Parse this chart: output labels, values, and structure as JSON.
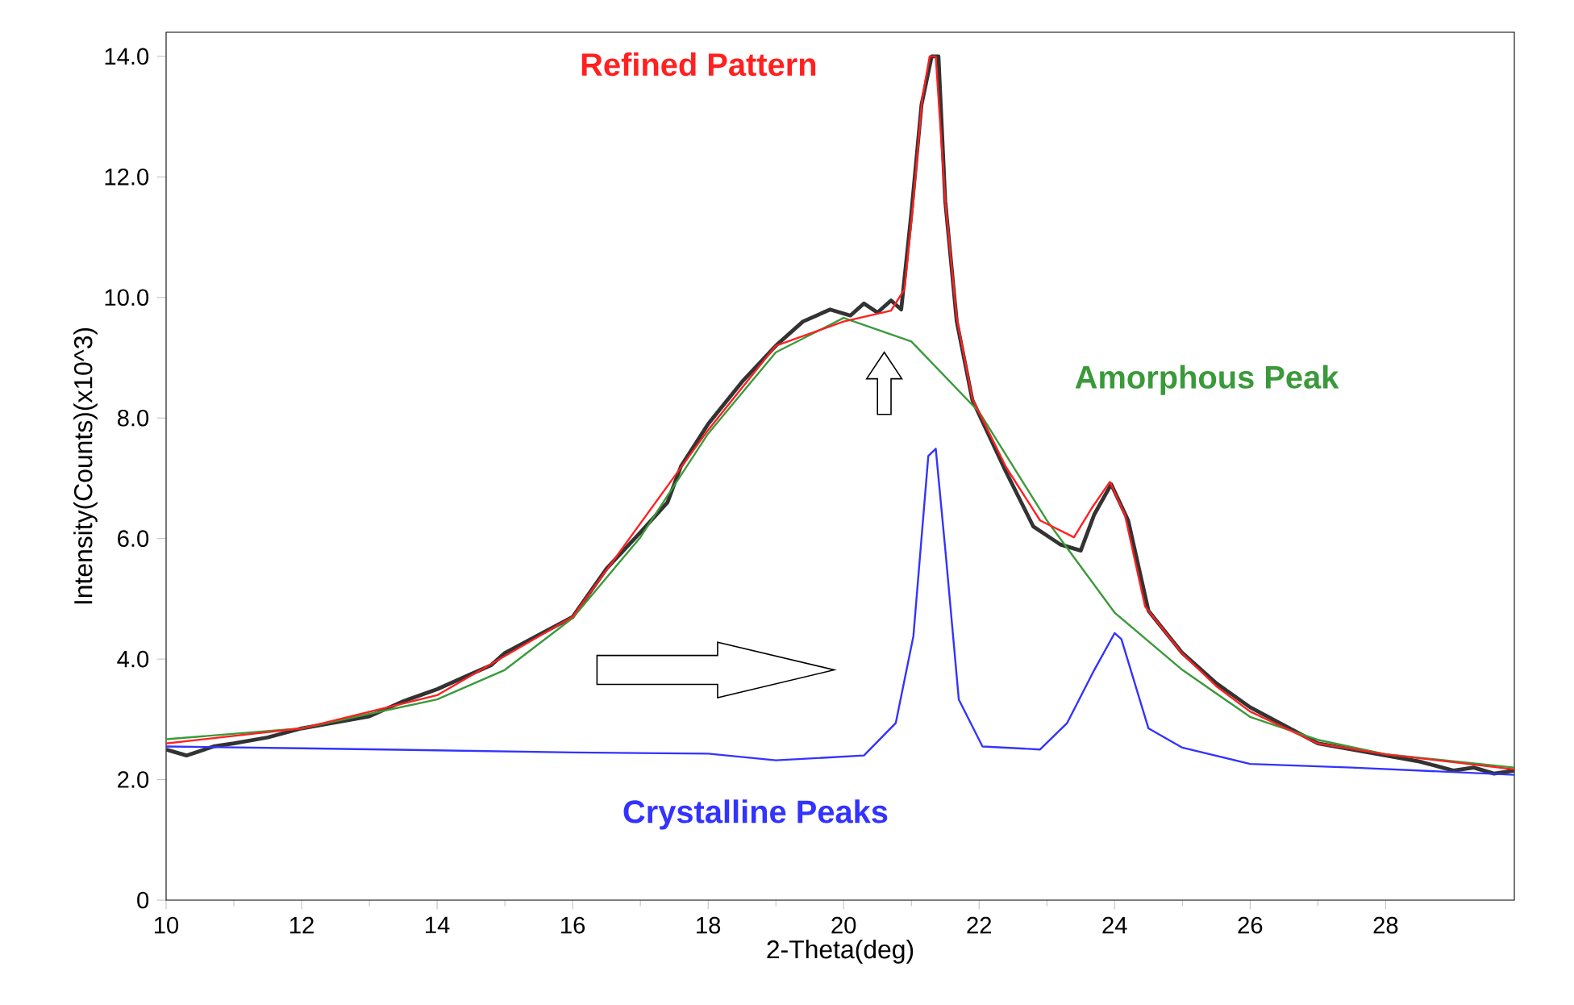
{
  "chart_data": {
    "type": "line",
    "xlabel": "2-Theta(deg)",
    "ylabel": "Intensity(Counts)(x10^3)",
    "xlim": [
      10,
      29.9
    ],
    "ylim": [
      0,
      14.4
    ],
    "xticks": [
      10,
      12,
      14,
      16,
      18,
      20,
      22,
      24,
      26,
      28
    ],
    "yticks": [
      0,
      {
        "value": 2,
        "label": "2.0"
      },
      {
        "value": 4,
        "label": "4.0"
      },
      {
        "value": 6,
        "label": "6.0"
      },
      {
        "value": 8,
        "label": "8.0"
      },
      {
        "value": 10,
        "label": "10.0"
      },
      {
        "value": 12,
        "label": "12.0"
      },
      {
        "value": 14,
        "label": "14.0"
      }
    ],
    "series": [
      {
        "color": "#333333",
        "x": [
          10,
          10.3,
          10.7,
          11,
          11.5,
          12,
          12.5,
          13,
          13.5,
          14,
          14.5,
          14.8,
          15,
          15.5,
          16,
          16.5,
          17,
          17.4,
          17.6,
          18,
          18.5,
          19,
          19.4,
          19.8,
          20.1,
          20.3,
          20.5,
          20.7,
          20.85,
          21.0,
          21.15,
          21.3,
          21.4,
          21.5,
          21.67,
          21.9,
          22.4,
          22.8,
          23.2,
          23.5,
          23.7,
          23.95,
          24.2,
          24.5,
          25,
          25.5,
          26,
          26.5,
          27,
          27.5,
          28,
          28.5,
          29,
          29.3,
          29.6,
          29.9
        ],
        "values": [
          2.5,
          2.4,
          2.55,
          2.6,
          2.7,
          2.85,
          2.95,
          3.05,
          3.3,
          3.5,
          3.75,
          3.9,
          4.1,
          4.4,
          4.7,
          5.5,
          6.1,
          6.6,
          7.2,
          7.9,
          8.6,
          9.2,
          9.6,
          9.8,
          9.7,
          9.9,
          9.75,
          9.95,
          9.8,
          11.4,
          13.2,
          14.0,
          14.0,
          11.6,
          9.6,
          8.3,
          7.1,
          6.2,
          5.9,
          5.8,
          6.4,
          6.9,
          6.3,
          4.8,
          4.1,
          3.6,
          3.2,
          2.9,
          2.6,
          2.5,
          2.4,
          2.3,
          2.15,
          2.2,
          2.1,
          2.15
        ]
      },
      {
        "name": "Amorphous Peak",
        "color": "#3a9a3a",
        "x": [
          10,
          12,
          14,
          15,
          16,
          17,
          18,
          19,
          20,
          21,
          22,
          23,
          24,
          25,
          26,
          27,
          28,
          29.9
        ],
        "values": [
          2.67,
          2.85,
          3.33,
          3.82,
          4.68,
          6.02,
          7.74,
          9.09,
          9.66,
          9.27,
          8.1,
          6.3,
          4.77,
          3.82,
          3.04,
          2.66,
          2.42,
          2.2
        ]
      },
      {
        "name": "Crystalline Peaks",
        "color": "#3333ff",
        "x": [
          10,
          12,
          16,
          18,
          19,
          20.3,
          20.77,
          21.03,
          21.25,
          21.36,
          21.5,
          21.7,
          22.05,
          22.9,
          23.3,
          23.7,
          24,
          24.1,
          24.5,
          25,
          26,
          27.5,
          29.9
        ],
        "values": [
          2.55,
          2.52,
          2.45,
          2.43,
          2.32,
          2.4,
          2.94,
          4.38,
          7.37,
          7.49,
          5.83,
          3.33,
          2.55,
          2.5,
          2.94,
          3.82,
          4.43,
          4.33,
          2.85,
          2.53,
          2.26,
          2.2,
          2.08
        ]
      },
      {
        "name": "Refined Pattern",
        "color": "#ff2020",
        "x": [
          10,
          12,
          14,
          16,
          18,
          19,
          20,
          20.7,
          20.9,
          21.03,
          21.16,
          21.27,
          21.36,
          21.5,
          21.67,
          21.9,
          22.4,
          22.9,
          23.4,
          23.66,
          23.93,
          24.15,
          24.45,
          25,
          25.5,
          26,
          27,
          28,
          29.9
        ],
        "values": [
          2.6,
          2.85,
          3.4,
          4.7,
          7.8,
          9.2,
          9.6,
          9.78,
          10.14,
          11.6,
          13.3,
          14.0,
          14.0,
          11.6,
          9.66,
          8.32,
          7.18,
          6.3,
          6.02,
          6.5,
          6.94,
          6.4,
          4.87,
          4.09,
          3.55,
          3.13,
          2.6,
          2.42,
          2.17
        ]
      }
    ]
  }
}
